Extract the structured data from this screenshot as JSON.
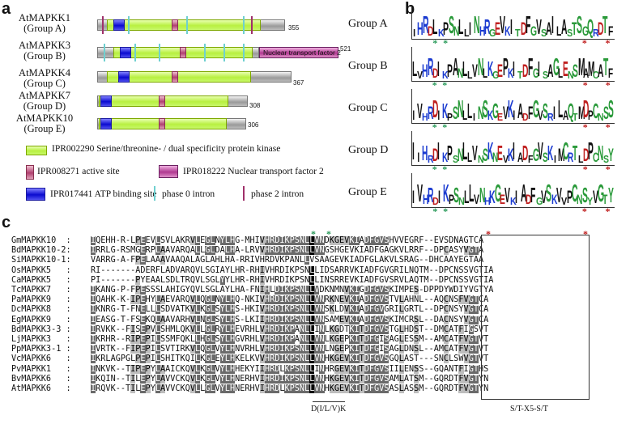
{
  "panels": {
    "a": "a",
    "b": "b",
    "c": "c"
  },
  "genes": [
    {
      "name": "AtMAPKK1",
      "group": "(Group A)",
      "length": "355"
    },
    {
      "name": "AtMAPKK3",
      "group": "(Group B)",
      "length": "521"
    },
    {
      "name": "AtMAPKK4",
      "group": "(Group C)",
      "length": "367"
    },
    {
      "name": "AtMAPKK7",
      "group": "(Group D)",
      "length": "308"
    },
    {
      "name": "AtMAPKK10",
      "group": "(Group E)",
      "length": "306"
    }
  ],
  "ntf_label": "Nuclear transport factor 2",
  "legend": {
    "kinase": "IPR002290 Serine/threonine- / dual specificity protein kinase",
    "active": "IPR008271 active site",
    "ntf": "IPR018222 Nuclear transport factor 2",
    "atp": "IPR017441 ATP binding site",
    "phase0": "phase 0 intron",
    "phase2": "phase 2 intron"
  },
  "logo_groups": [
    {
      "label": "Group  A",
      "seq": "IHRDLKPSNLLINHRGEVKITDFGVSAILASTSGQRDTF"
    },
    {
      "label": "Group  B",
      "seq": "LVHRDIKPANLLVNLKGEPKITDFGISAGLENSMAMCATF"
    },
    {
      "label": "Group  C",
      "seq": "IVHRDIKPSNLLINSKGEVKIADFGVSRILAQTMDPCNSS"
    },
    {
      "label": "Group  D",
      "seq": "IIHRDIKPSNLLVNSKNEVKIADFGVSKIMCRTLDPCNSY"
    },
    {
      "label": "Group  E",
      "seq": "IVHRDIKPSNLLVNHKGEVKIADFGVSKVVPCNSYVGTY"
    }
  ],
  "alignment": [
    {
      "name": "GmMAPKK10  :",
      "seq": "IQEHH-R-LPEEVLSVLAKRVLEGLNYLHG-MHIVHRDIKPSNLLVNDKGEVKIADFGVSHVVEGRF--EVSDNAGTCA"
    },
    {
      "name": "BdMAPKK10-2:",
      "seq": "IRRLG-RSMGERPLAAVARQALLGLDALHA-LRVVHRDIKPSNLLVNGSHGEVKIADFGAGKVLRRF--DPCASYVGTA"
    },
    {
      "name": "SiMAPKK10-1:",
      "seq": "VARRG-A-FPELAAAVAAQALAGLAHLHA-RRIVHRDVKPANLLVSAAGEVKIADFGLAKVLSRAG--DHCAAYEGTAA"
    },
    {
      "name": "OsMAPKK5   :",
      "seq": "RI-------ADERFLADVARQVLSGIAYLHR-RHIVHRDIKPSNLLIDSARRVKIADFGVGRILNQTM--DPCNSSVGTIA"
    },
    {
      "name": "CaMAPKK5   :",
      "seq": "PI-------PYEAALSDLTRQVLSGLYYLHR-RHIVHRDIKPSNLLINSRREVKIADFGVSRVLAQTM--DPCNSSVGTIA"
    },
    {
      "name": "TcMAPKK7   :",
      "seq": "IKANG-P-FPESSSLAHIGYQVLSGLAYLHA-FNIHLDIKPSNLLVDKNMNVKIGDFGVSKIMPES-DPPDYWDIYVGTYA"
    },
    {
      "name": "PaMAPKK9   :",
      "seq": "IQAHK-K-IPEHYLAEVARQVLQGLNYLHQ-NKIVHRDIKPSNLLVNRKNEVKIADFGVSTVLAHNL--AQCNSFVGTCA"
    },
    {
      "name": "DcMAPKK8   :",
      "seq": "IKNRG-T-FNELLLSDVATKVLKGLSYLHS-HKIVHRDIKPSNLLVNSKLDVKIADFGVGRILGRTL--DPCNSYVGTCA"
    },
    {
      "name": "EgMAPKK9   :",
      "seq": "IEASG-T-FSEKQLAAVARHVLNGLSYLHS-LKIIHRDIKPSNLLVNSAMEVKIADFGVSKIMCRSL--DACNSYVGTCA"
    },
    {
      "name": "BdMAPKK3-3 :",
      "seq": "IRVKK--FISEPVLSHMLQKVLLGLRYLHEVRHLVHRDIKPANLLINLKGDTKITDFGVSTGLHDST--DMCATFIGSVT"
    },
    {
      "name": "LjMAPKK3   :",
      "seq": "IKRHR--RIPEPILSSMFQKLLHGLSYLHGVRHLVHRDIKPANLLVNLKGEPKITDFGISAGLESSM--AMCATFVGTVT"
    },
    {
      "name": "PpMAPKK3-1 :",
      "seq": "IVRTK--FIPEPILSVTIRKVLQGLVYLHNVRHLVHRDIKPSNLLVNLNGEPKITDFGISAGLDNSL--AMCATFVGTVT"
    },
    {
      "name": "VcMAPKK6   :",
      "seq": "IKRLAGPGLPEPILSHITKQILKGLEYLHKELKVVHRDIKPSNLLVNHKGEVKITDFGVSGQLAST---SNCLSWVGTVT"
    },
    {
      "name": "PvMAPKK1   :",
      "seq": "INKVK--TIPEPYLAAICKQVLKGLVYLHHEKYIIHRDLKPSNLLINHRGEVKITDFGVSIILENSS--GQANTFIGTHS"
    },
    {
      "name": "BvMAPKK6   :",
      "seq": "IKQIN--TILEPYLAVVCKQVLKGLVYLHNERHVIHRDIKPSNLLVNHKGEVKITDFGVSAMLATSM--GQRDTFVGTYN"
    },
    {
      "name": "AtMAPKK6   :",
      "seq": "IRQVK--TILEPYLAVVCKQVLLGLVYLHNERHVIHRDLKPSNLLVNHKGEVKITDFGVSASLASSM--GQRDTFVGTYN"
    }
  ],
  "motifs": {
    "kinase_motif": "D(I/L/V)K",
    "phospho_motif": "S/T-X5-S/T"
  },
  "stars": {
    "green": "*",
    "red": "*"
  },
  "colors": {
    "kinase": "#b8f040",
    "atp": "#0a0ad0",
    "active": "#b04070",
    "ntf": "#b03890",
    "phase0": "#6fd0d0",
    "phase2": "#a0306a",
    "star_green": "#2a9a5a",
    "star_red": "#c02020"
  }
}
